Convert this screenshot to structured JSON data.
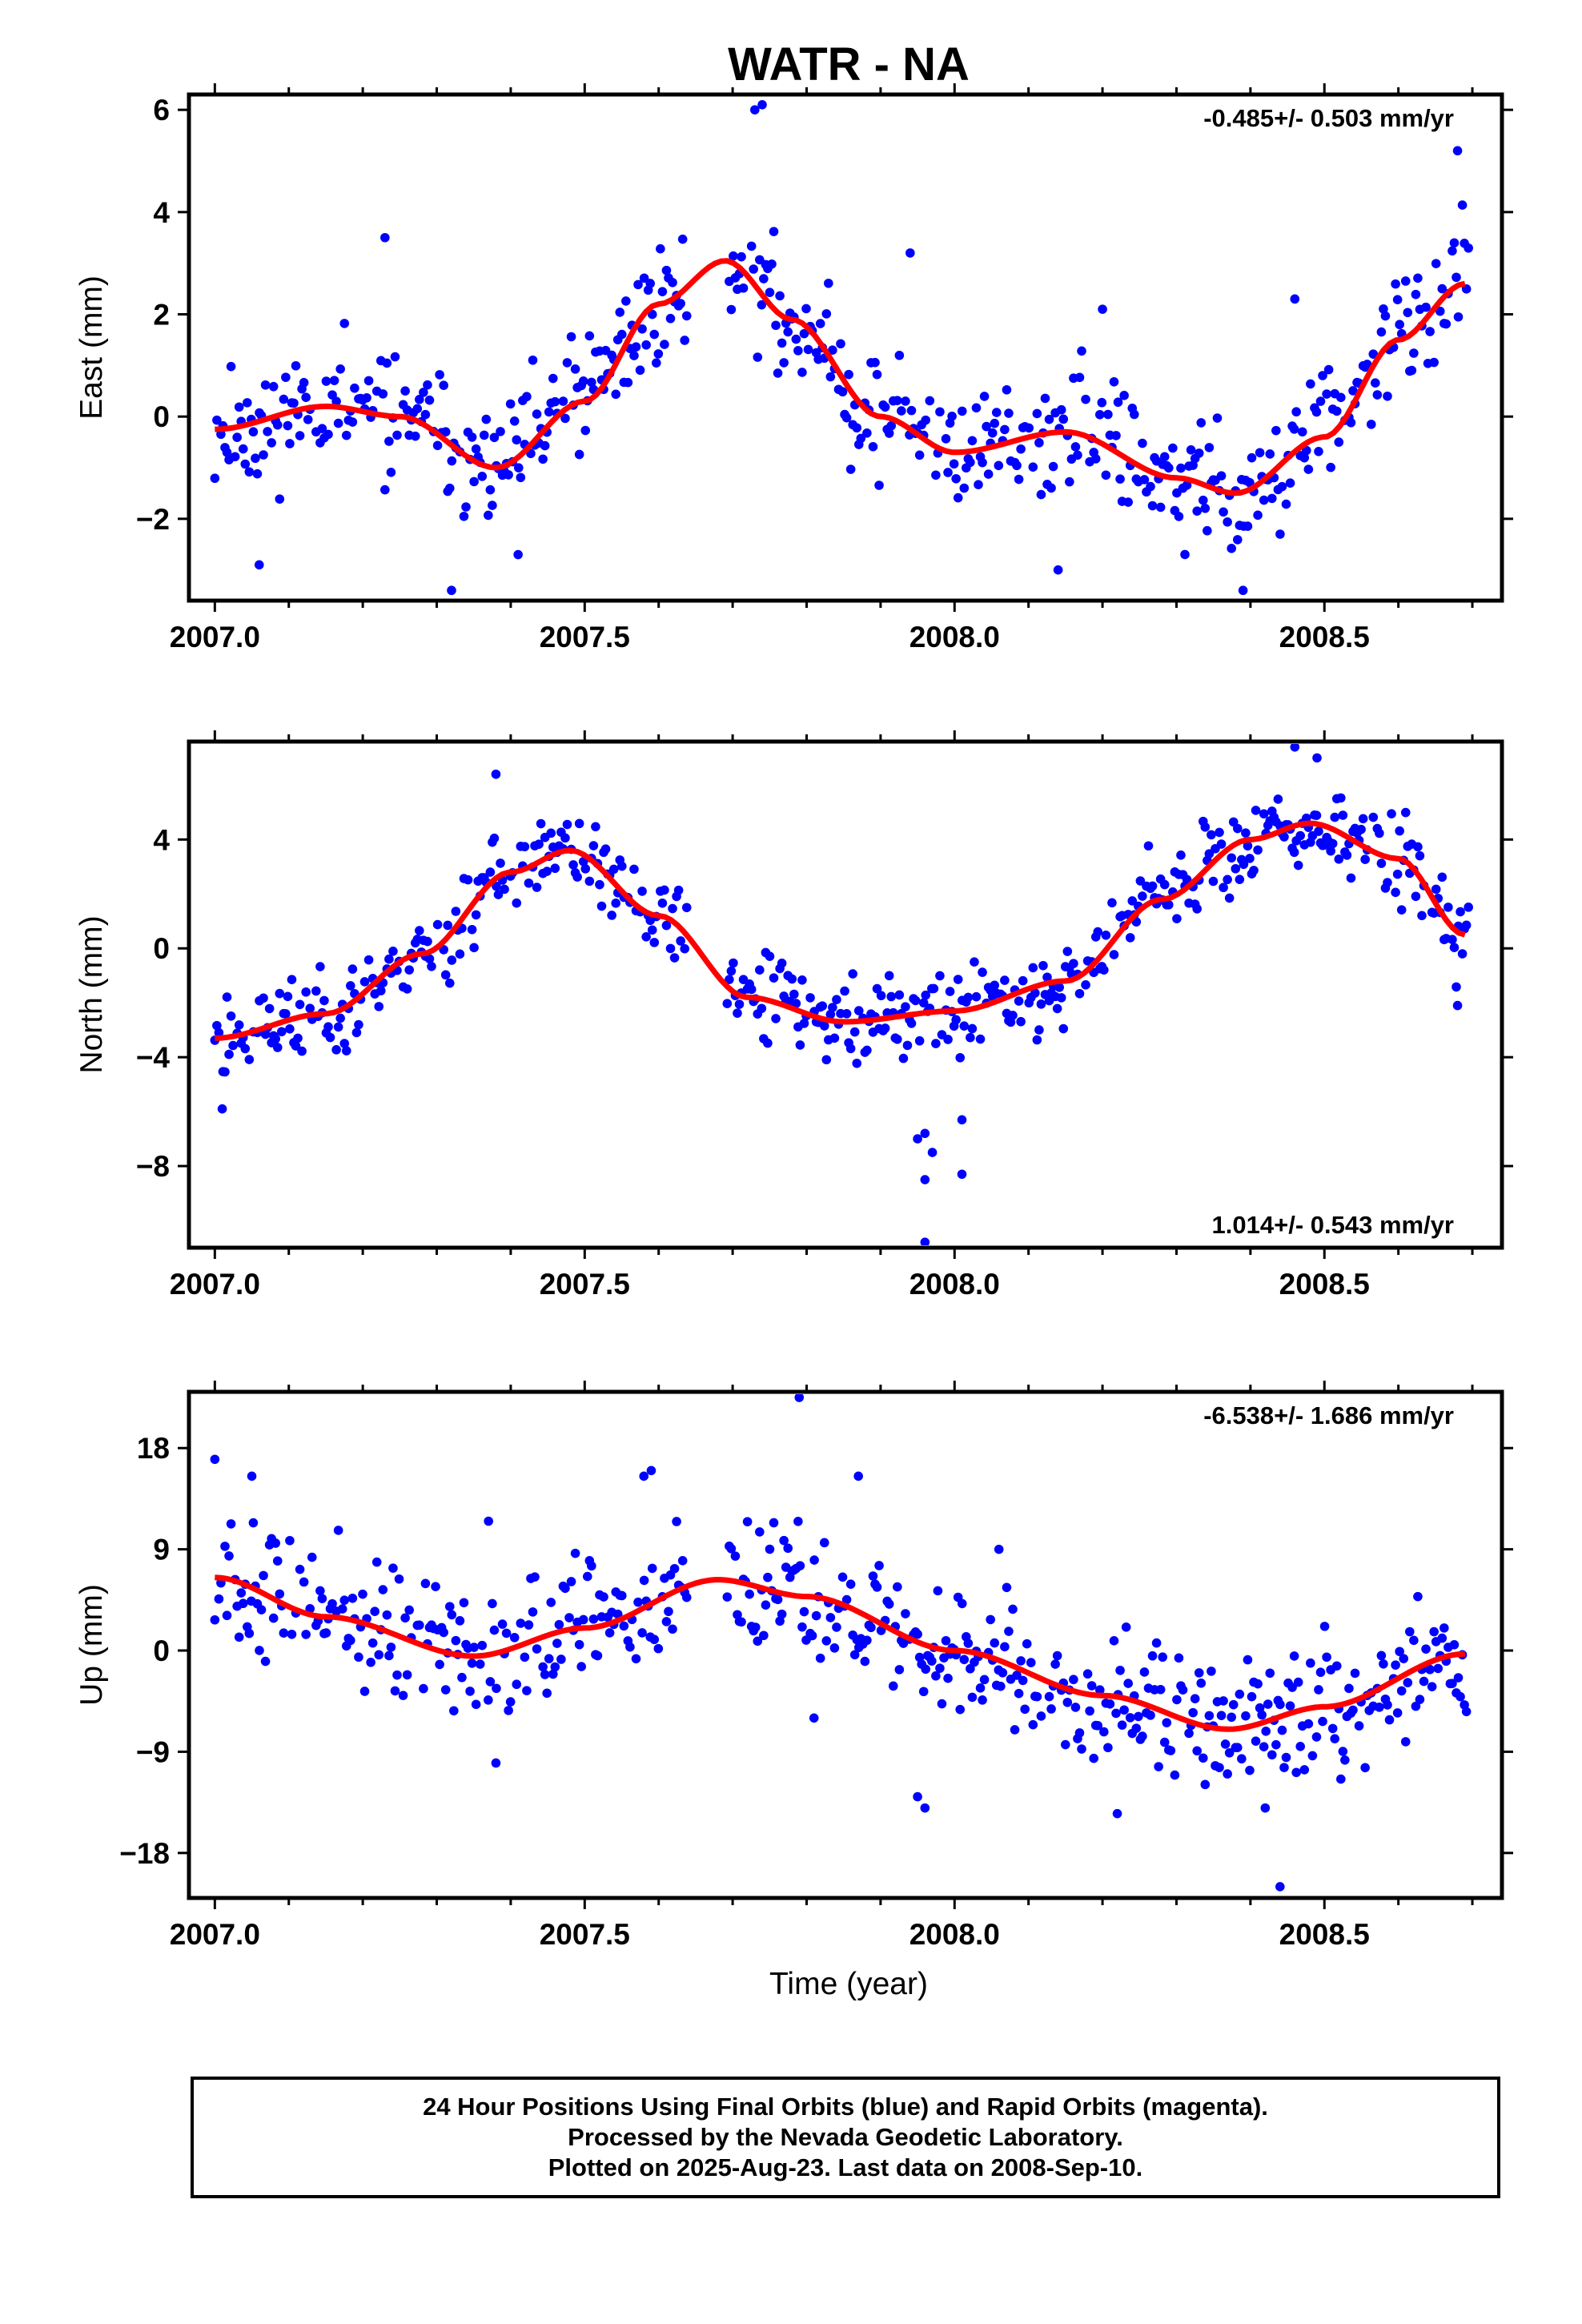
{
  "chart_data": {
    "type": "scatter",
    "title": "WATR - NA",
    "xlabel": "Time (year)",
    "xlim": [
      2006.965,
      2008.74
    ],
    "xticks": [
      2007.0,
      2007.5,
      2008.0,
      2008.5
    ],
    "xtick_labels": [
      "2007.0",
      "2007.5",
      "2008.0",
      "2008.5"
    ],
    "series_colors": {
      "points": "#0000ff",
      "fit": "#ff0000"
    },
    "panels": [
      {
        "id": "east",
        "ylabel": "East (mm)",
        "ylim": [
          -3.6,
          6.3
        ],
        "yticks": [
          -2,
          0,
          2,
          4,
          6
        ],
        "ytick_labels": [
          "−2",
          "0",
          "2",
          "4",
          "6"
        ],
        "rate_text": "-0.485+/- 0.503 mm/yr",
        "rate_position": "top-right",
        "fit_curve": {
          "x": [
            2007.0,
            2007.15,
            2007.25,
            2007.38,
            2007.5,
            2007.6,
            2007.69,
            2007.78,
            2007.9,
            2008.0,
            2008.15,
            2008.3,
            2008.38,
            2008.5,
            2008.6,
            2008.69
          ],
          "y": [
            -0.25,
            0.2,
            0.0,
            -1.0,
            0.3,
            2.2,
            3.05,
            1.9,
            0.0,
            -0.7,
            -0.3,
            -1.2,
            -1.5,
            -0.4,
            1.5,
            2.6
          ]
        },
        "outliers": [
          {
            "x": 2007.73,
            "y": 6.0
          },
          {
            "x": 2007.74,
            "y": 6.1
          },
          {
            "x": 2007.23,
            "y": 3.5
          },
          {
            "x": 2007.32,
            "y": -3.4
          },
          {
            "x": 2007.06,
            "y": -2.9
          },
          {
            "x": 2008.39,
            "y": -3.4
          },
          {
            "x": 2008.68,
            "y": 5.2
          },
          {
            "x": 2007.94,
            "y": 3.2
          },
          {
            "x": 2008.2,
            "y": 2.1
          },
          {
            "x": 2008.46,
            "y": 2.3
          },
          {
            "x": 2007.41,
            "y": -2.7
          },
          {
            "x": 2008.14,
            "y": -3.0
          }
        ],
        "scatter_sigma": 0.6,
        "seed": 11
      },
      {
        "id": "north",
        "ylabel": "North (mm)",
        "ylim": [
          -11.0,
          7.6
        ],
        "yticks": [
          -8,
          -4,
          0,
          4
        ],
        "ytick_labels": [
          "−8",
          "−4",
          "0",
          "4"
        ],
        "rate_text": "1.014+/- 0.543 mm/yr",
        "rate_position": "bottom-right",
        "fit_curve": {
          "x": [
            2007.0,
            2007.15,
            2007.28,
            2007.4,
            2007.48,
            2007.6,
            2007.72,
            2007.85,
            2008.0,
            2008.15,
            2008.28,
            2008.4,
            2008.48,
            2008.6,
            2008.69
          ],
          "y": [
            -3.3,
            -2.4,
            -0.2,
            2.8,
            3.6,
            1.2,
            -1.8,
            -2.7,
            -2.3,
            -1.2,
            1.8,
            4.0,
            4.6,
            3.3,
            0.5
          ]
        },
        "outliers": [
          {
            "x": 2007.96,
            "y": -10.8
          },
          {
            "x": 2007.96,
            "y": -8.5
          },
          {
            "x": 2007.97,
            "y": -7.5
          },
          {
            "x": 2007.95,
            "y": -7.0
          },
          {
            "x": 2007.96,
            "y": -6.8
          },
          {
            "x": 2008.01,
            "y": -8.3
          },
          {
            "x": 2008.01,
            "y": -6.3
          },
          {
            "x": 2007.01,
            "y": -5.9
          },
          {
            "x": 2007.38,
            "y": 6.4
          },
          {
            "x": 2008.46,
            "y": 7.4
          },
          {
            "x": 2008.49,
            "y": 7.0
          },
          {
            "x": 2008.68,
            "y": -2.1
          }
        ],
        "scatter_sigma": 0.8,
        "seed": 23
      },
      {
        "id": "up",
        "ylabel": "Up (mm)",
        "ylim": [
          -22.0,
          23.0
        ],
        "yticks": [
          -18,
          -9,
          0,
          9,
          18
        ],
        "ytick_labels": [
          "−18",
          "−9",
          "0",
          "9",
          "18"
        ],
        "rate_text": "-6.538+/- 1.686 mm/yr",
        "rate_position": "top-right",
        "fit_curve": {
          "x": [
            2007.0,
            2007.15,
            2007.35,
            2007.5,
            2007.68,
            2007.8,
            2008.0,
            2008.2,
            2008.37,
            2008.5,
            2008.69
          ],
          "y": [
            6.5,
            3.0,
            -0.5,
            2.0,
            6.3,
            4.8,
            0.0,
            -4.0,
            -7.0,
            -5.0,
            -0.3
          ]
        },
        "outliers": [
          {
            "x": 2007.79,
            "y": 22.5
          },
          {
            "x": 2008.44,
            "y": -21.0
          },
          {
            "x": 2007.96,
            "y": -14.0
          },
          {
            "x": 2007.95,
            "y": -13.0
          },
          {
            "x": 2008.22,
            "y": -14.5
          },
          {
            "x": 2008.42,
            "y": -14.0
          },
          {
            "x": 2007.37,
            "y": 11.5
          },
          {
            "x": 2007.87,
            "y": 15.5
          },
          {
            "x": 2007.05,
            "y": 15.5
          },
          {
            "x": 2007.59,
            "y": 16.0
          },
          {
            "x": 2007.58,
            "y": 15.5
          },
          {
            "x": 2007.0,
            "y": 17.0
          },
          {
            "x": 2007.81,
            "y": -6.0
          },
          {
            "x": 2007.38,
            "y": -10.0
          },
          {
            "x": 2008.06,
            "y": 9.0
          }
        ],
        "scatter_sigma": 2.8,
        "seed": 37
      }
    ]
  },
  "footer": {
    "line1": "24 Hour Positions Using Final Orbits (blue) and Rapid Orbits (magenta).",
    "line2": "Processed by the Nevada Geodetic Laboratory.",
    "line3": "Plotted on 2025-Aug-23. Last data on 2008-Sep-10."
  }
}
